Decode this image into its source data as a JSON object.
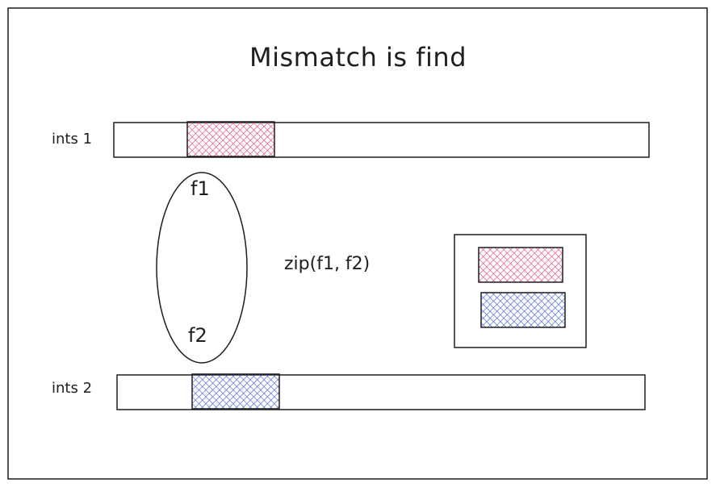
{
  "title": "Mismatch is find",
  "arrays": [
    {
      "label": "ints 1",
      "highlight_color": "#e03a6a"
    },
    {
      "label": "ints 2",
      "highlight_color": "#3b5bd6"
    }
  ],
  "pointers": {
    "first": "f1",
    "second": "f2"
  },
  "operation": "zip(f1, f2)",
  "colors": {
    "stroke": "#1e1e1e",
    "pink": "#e03a6a",
    "blue": "#3b5bd6"
  }
}
